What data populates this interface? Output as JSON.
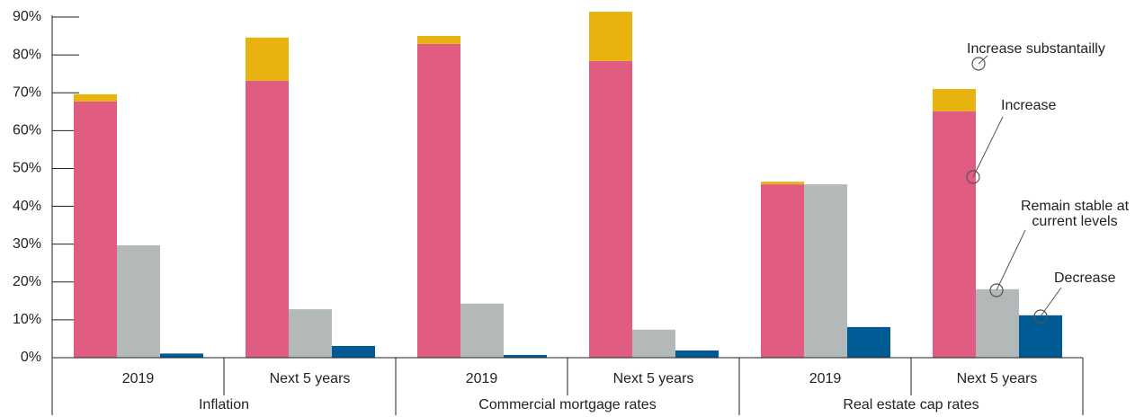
{
  "chart_data": {
    "type": "bar",
    "categories": [
      "2019",
      "Next 5 years",
      "2019",
      "Next 5 years",
      "2019",
      "Next 5 years"
    ],
    "groups": [
      "Inflation",
      "Commercial mortgage rates",
      "Real estate cap rates"
    ],
    "series": [
      {
        "name": "Increase",
        "color": "#e05c80",
        "values": [
          67.7,
          73.2,
          82.9,
          78.4,
          45.8,
          65.1
        ]
      },
      {
        "name": "Increase substantailly",
        "color": "#e8b30f",
        "values": [
          1.9,
          11.4,
          2.1,
          13.0,
          0.7,
          5.9
        ]
      },
      {
        "name": "Remain stable at current levels",
        "color": "#b3b8b8",
        "values": [
          29.7,
          12.8,
          14.3,
          7.4,
          45.8,
          18.1
        ]
      },
      {
        "name": "Decrease",
        "color": "#005b94",
        "values": [
          1.1,
          3.1,
          0.7,
          1.9,
          8.1,
          11.2
        ]
      }
    ],
    "ylim": [
      0,
      90
    ],
    "yticks": [
      {
        "value": 0,
        "label": "0%"
      },
      {
        "value": 10,
        "label": "10%"
      },
      {
        "value": 20,
        "label": "20%"
      },
      {
        "value": 30,
        "label": "30%"
      },
      {
        "value": 40,
        "label": "40%"
      },
      {
        "value": 50,
        "label": "50%"
      },
      {
        "value": 60,
        "label": "60%"
      },
      {
        "value": 70,
        "label": "70%"
      },
      {
        "value": 80,
        "label": "80%"
      },
      {
        "value": 90,
        "label": "90%"
      }
    ]
  }
}
